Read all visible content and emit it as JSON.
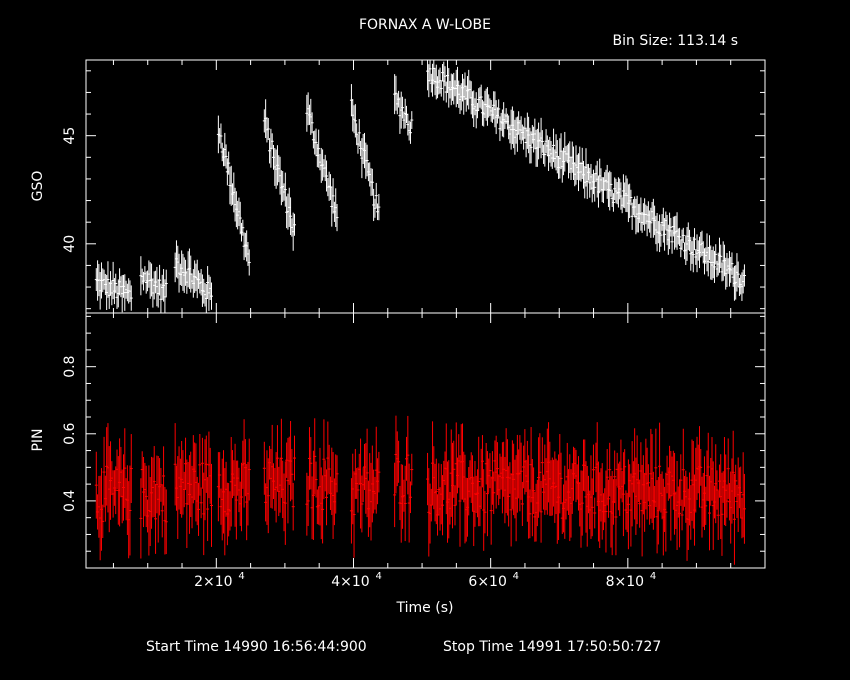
{
  "title": "FORNAX A W-LOBE",
  "bin_size": "Bin Size: 113.14 s",
  "footer": {
    "start_time": "Start Time 14990 16:56:44:900",
    "stop_time": "Stop Time 14991 17:50:50:727"
  },
  "colors": {
    "background": "#000000",
    "axes": "#ffffff",
    "gso": "#ffffff",
    "pin": "#ff0000"
  },
  "chart_data": [
    {
      "type": "scatter",
      "panel": "top",
      "ylabel": "GSO",
      "xlim": [
        1000,
        100000
      ],
      "ylim": [
        36.8,
        48.5
      ],
      "yticks": [
        40,
        45
      ],
      "ytick_labels": [
        "40",
        "45"
      ],
      "error_bars": true,
      "segments": [
        {
          "x": [
            2500,
            7600
          ],
          "y": [
            38.2,
            37.6
          ]
        },
        {
          "x": [
            9000,
            12700
          ],
          "y": [
            38.6,
            37.7
          ]
        },
        {
          "x": [
            14000,
            19300
          ],
          "y": [
            39.2,
            37.6
          ]
        },
        {
          "x": [
            20300,
            24800
          ],
          "y": [
            45.4,
            39.2
          ]
        },
        {
          "x": [
            27000,
            31400
          ],
          "y": [
            45.6,
            40.6
          ]
        },
        {
          "x": [
            33200,
            37600
          ],
          "y": [
            46.2,
            41.3
          ]
        },
        {
          "x": [
            39700,
            43700
          ],
          "y": [
            46.2,
            41.3
          ]
        },
        {
          "x": [
            46000,
            48500
          ],
          "y": [
            46.8,
            45.4
          ]
        },
        {
          "x": [
            50800,
            97000
          ],
          "y": [
            48.0,
            38.3
          ]
        }
      ]
    },
    {
      "type": "scatter",
      "panel": "bottom",
      "ylabel": "PIN",
      "xlabel": "Time (s)",
      "xlim": [
        1000,
        100000
      ],
      "ylim": [
        0.2,
        0.96
      ],
      "yticks": [
        0.4,
        0.6,
        0.8
      ],
      "ytick_labels": [
        "0.4",
        "0.6",
        "0.8"
      ],
      "xticks": [
        20000,
        40000,
        60000,
        80000
      ],
      "xtick_mantissas": [
        "2×10",
        "4×10",
        "6×10",
        "8×10"
      ],
      "xtick_exponent": "4",
      "error_bars": true,
      "segments": [
        {
          "x": [
            2500,
            7600
          ],
          "y": [
            0.42,
            0.42
          ]
        },
        {
          "x": [
            9000,
            12700
          ],
          "y": [
            0.42,
            0.42
          ]
        },
        {
          "x": [
            14000,
            19300
          ],
          "y": [
            0.44,
            0.44
          ]
        },
        {
          "x": [
            20300,
            24800
          ],
          "y": [
            0.45,
            0.43
          ]
        },
        {
          "x": [
            27000,
            31400
          ],
          "y": [
            0.45,
            0.45
          ]
        },
        {
          "x": [
            33200,
            37600
          ],
          "y": [
            0.46,
            0.45
          ]
        },
        {
          "x": [
            39700,
            43700
          ],
          "y": [
            0.43,
            0.43
          ]
        },
        {
          "x": [
            46000,
            48500
          ],
          "y": [
            0.47,
            0.47
          ]
        },
        {
          "x": [
            50800,
            97000
          ],
          "y": [
            0.44,
            0.42
          ]
        }
      ]
    }
  ]
}
